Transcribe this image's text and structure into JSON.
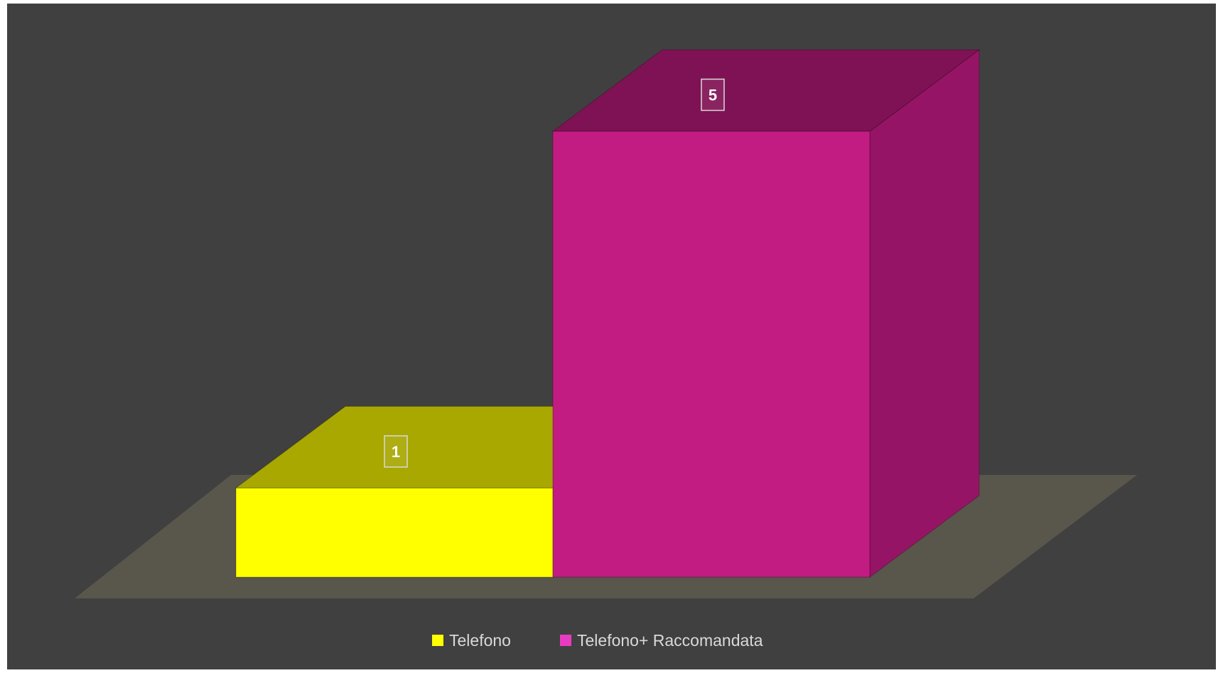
{
  "chart_data": {
    "type": "bar",
    "style": "3d-column",
    "categories": [
      ""
    ],
    "series": [
      {
        "name": "Telefono",
        "values": [
          1
        ],
        "color": "#ffff00",
        "top_color": "#a8a800",
        "side_color": "#b3b300"
      },
      {
        "name": "Telefono+ Raccomandata",
        "values": [
          5
        ],
        "color": "#c21c83",
        "top_color": "#7f1254",
        "side_color": "#961465"
      }
    ],
    "title": "",
    "xlabel": "",
    "ylabel": "",
    "ylim": [
      0,
      5
    ],
    "grid": false,
    "legend": "bottom",
    "data_labels": true,
    "background": "#404040",
    "floor_color": "#59564c"
  }
}
